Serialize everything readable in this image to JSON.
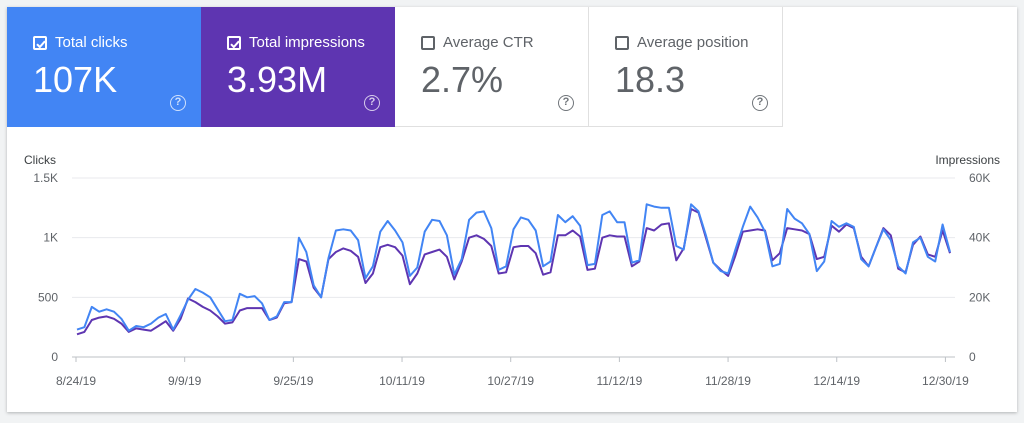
{
  "metrics": [
    {
      "label": "Total clicks",
      "value": "107K",
      "checked": true,
      "color": "#4285f4"
    },
    {
      "label": "Total impressions",
      "value": "3.93M",
      "checked": true,
      "color": "#5e35b1"
    },
    {
      "label": "Average CTR",
      "value": "2.7%",
      "checked": false
    },
    {
      "label": "Average position",
      "value": "18.3",
      "checked": false
    }
  ],
  "help_glyph": "?",
  "chart_data": {
    "type": "line",
    "left_axis": {
      "title": "Clicks",
      "ticks": [
        "1.5K",
        "1K",
        "500",
        "0"
      ],
      "range": [
        0,
        1500
      ]
    },
    "right_axis": {
      "title": "Impressions",
      "ticks": [
        "60K",
        "40K",
        "20K",
        "0"
      ],
      "range": [
        0,
        60000
      ]
    },
    "x_tick_labels": [
      "8/24/19",
      "9/9/19",
      "9/25/19",
      "10/11/19",
      "10/27/19",
      "11/12/19",
      "11/28/19",
      "12/14/19",
      "12/30/19"
    ],
    "x_range": [
      "8/24/19",
      "1/1/20"
    ],
    "grid": true,
    "series": [
      {
        "name": "Clicks",
        "axis": "left",
        "color": "#4285f4",
        "values": [
          230,
          250,
          420,
          380,
          400,
          380,
          320,
          220,
          260,
          250,
          280,
          330,
          360,
          230,
          350,
          480,
          570,
          540,
          500,
          400,
          300,
          310,
          530,
          500,
          510,
          450,
          310,
          340,
          460,
          460,
          1000,
          880,
          600,
          500,
          830,
          1060,
          1070,
          1060,
          980,
          660,
          760,
          1050,
          1140,
          1060,
          960,
          680,
          750,
          1050,
          1150,
          1140,
          1020,
          690,
          820,
          1150,
          1210,
          1220,
          1080,
          730,
          760,
          1070,
          1170,
          1150,
          1060,
          760,
          800,
          1190,
          1130,
          1180,
          1100,
          770,
          780,
          1190,
          1220,
          1130,
          1130,
          790,
          810,
          1280,
          1260,
          1250,
          1250,
          930,
          900,
          1280,
          1220,
          1020,
          790,
          720,
          700,
          900,
          1090,
          1260,
          1170,
          1050,
          760,
          780,
          1240,
          1160,
          1120,
          1030,
          720,
          800,
          1140,
          1090,
          1120,
          1090,
          820,
          760,
          920,
          1070,
          980,
          760,
          700,
          960,
          1000,
          840,
          800,
          1110,
          880
        ]
      },
      {
        "name": "Impressions",
        "axis": "right",
        "color": "#5e35b1",
        "values": [
          7600,
          8400,
          12400,
          13200,
          13600,
          12800,
          11200,
          8400,
          9600,
          9200,
          8800,
          10400,
          12000,
          8800,
          12800,
          19600,
          18400,
          16800,
          15600,
          13600,
          11200,
          11600,
          15600,
          16400,
          16400,
          16400,
          12400,
          13200,
          18000,
          18400,
          32800,
          32000,
          23200,
          20000,
          32800,
          35200,
          36400,
          35600,
          33600,
          24800,
          28000,
          36800,
          37600,
          36800,
          34000,
          24400,
          28000,
          34400,
          35200,
          36000,
          33600,
          26000,
          32000,
          40000,
          40800,
          39600,
          37200,
          28000,
          28400,
          36800,
          37200,
          37200,
          34800,
          27600,
          28400,
          40800,
          40800,
          42400,
          40400,
          29200,
          29600,
          40000,
          40800,
          40400,
          40400,
          30400,
          32000,
          43200,
          42400,
          44400,
          44800,
          32400,
          36400,
          49600,
          48400,
          40000,
          31600,
          29200,
          27200,
          34000,
          42000,
          42400,
          42800,
          42400,
          32400,
          34800,
          43200,
          42800,
          42400,
          41200,
          32800,
          33600,
          44000,
          42000,
          44400,
          43200,
          33600,
          30400,
          36800,
          43200,
          40800,
          29600,
          28400,
          37600,
          40400,
          34400,
          33600,
          42400,
          34800
        ]
      }
    ]
  }
}
